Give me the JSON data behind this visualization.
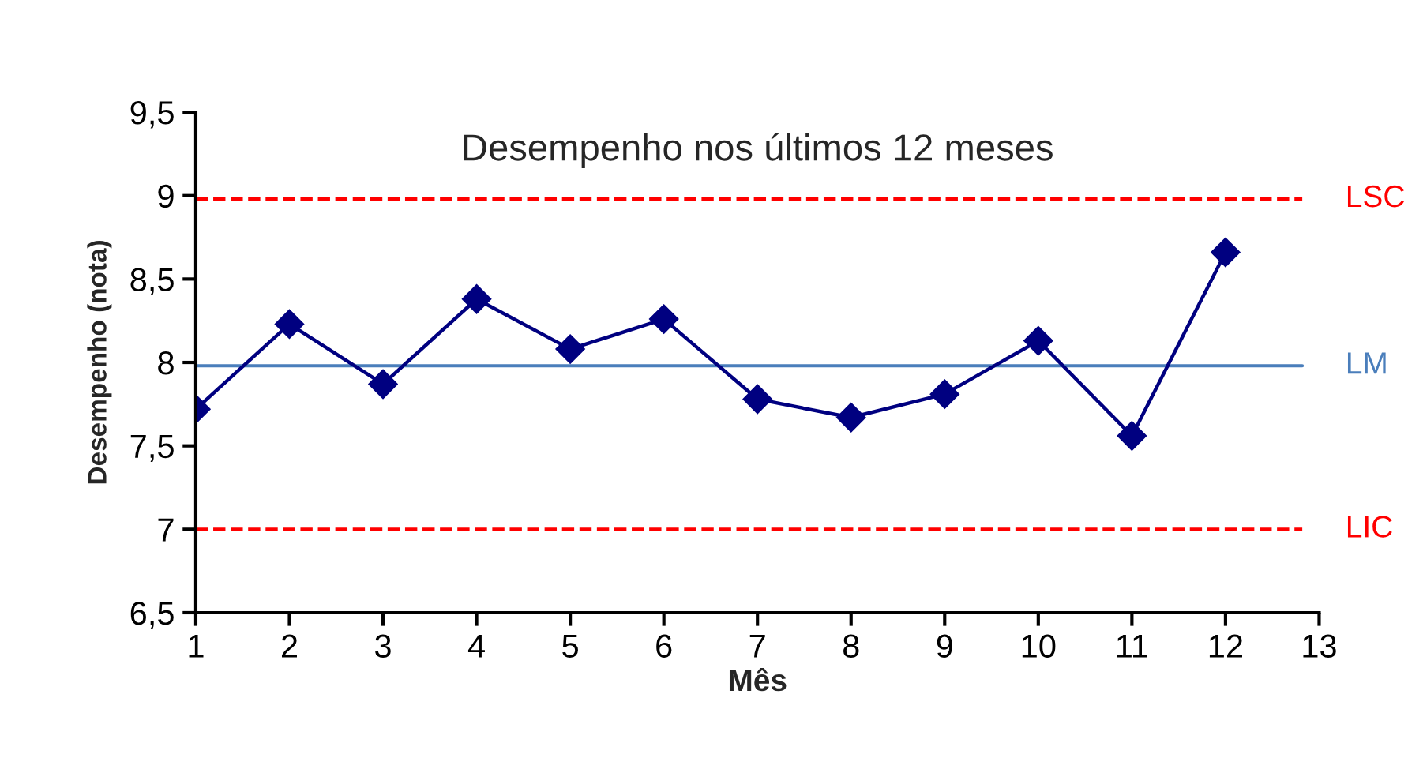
{
  "chart_data": {
    "type": "line",
    "title": "Desempenho nos últimos 12 meses",
    "xlabel": "Mês",
    "ylabel": "Desempenho (nota)",
    "x": [
      1,
      2,
      3,
      4,
      5,
      6,
      7,
      8,
      9,
      10,
      11,
      12
    ],
    "series": [
      {
        "color": "#000080",
        "values": [
          7.72,
          8.23,
          7.87,
          8.38,
          8.08,
          8.26,
          7.78,
          7.67,
          7.81,
          8.13,
          7.56,
          8.66
        ]
      }
    ],
    "marker": "diamond",
    "line_style": "solid",
    "grid": false,
    "legend": false,
    "xlim": [
      1,
      13
    ],
    "xticks": [
      1,
      2,
      3,
      4,
      5,
      6,
      7,
      8,
      9,
      10,
      11,
      12,
      13
    ],
    "ylim": [
      6.5,
      9.5
    ],
    "yticks": [
      {
        "value": 6.5,
        "label": "6,5"
      },
      7,
      {
        "value": 7.5,
        "label": "7,5"
      },
      8,
      {
        "value": 8.5,
        "label": "8,5"
      },
      9,
      {
        "value": 9.5,
        "label": "9,5"
      }
    ],
    "ref_lines": [
      {
        "axis": "y",
        "value": 8.98,
        "label": "LSC",
        "color": "#ff0000",
        "line_style": "dashed"
      },
      {
        "axis": "y",
        "value": 7.98,
        "label": "LM",
        "color": "#4a7ebb",
        "line_style": "solid"
      },
      {
        "axis": "y",
        "value": 7.0,
        "label": "LIC",
        "color": "#ff0000",
        "line_style": "dashed"
      }
    ]
  }
}
